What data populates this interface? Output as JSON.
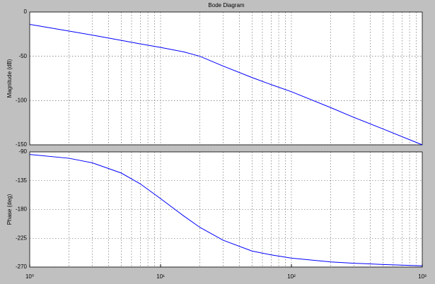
{
  "chart_data": [
    {
      "type": "line",
      "title": "Bode Diagram",
      "ylabel": "Magnitude (dB)",
      "xscale": "log",
      "grid": true,
      "xlim": [
        1,
        1000
      ],
      "ylim": [
        -150,
        0
      ],
      "yticks": [
        0,
        -50,
        -100,
        -150
      ],
      "color": "#0000ff",
      "x": [
        1,
        2,
        3,
        5,
        7,
        10,
        15,
        20,
        30,
        50,
        70,
        100,
        200,
        300,
        500,
        1000
      ],
      "values": [
        -14,
        -21.5,
        -26,
        -32,
        -36,
        -40,
        -45,
        -50,
        -61,
        -74,
        -82,
        -90,
        -108,
        -119,
        -132,
        -150
      ]
    },
    {
      "type": "line",
      "ylabel": "Phase (deg)",
      "xscale": "log",
      "grid": true,
      "xlim": [
        1,
        1000
      ],
      "ylim": [
        -270,
        -90
      ],
      "yticks": [
        -90,
        -135,
        -180,
        -225,
        -270
      ],
      "color": "#0000ff",
      "xticks": [
        {
          "value": 1,
          "label": "10⁰"
        },
        {
          "value": 10,
          "label": "10¹"
        },
        {
          "value": 100,
          "label": "10²"
        },
        {
          "value": 1000,
          "label": "10³"
        }
      ],
      "x": [
        1,
        2,
        3,
        5,
        7,
        10,
        15,
        20,
        30,
        50,
        70,
        100,
        200,
        300,
        500,
        1000
      ],
      "values": [
        -94,
        -100,
        -107,
        -123,
        -140,
        -163,
        -190,
        -208,
        -228,
        -245,
        -251,
        -256,
        -262,
        -264,
        -266,
        -268
      ]
    }
  ]
}
